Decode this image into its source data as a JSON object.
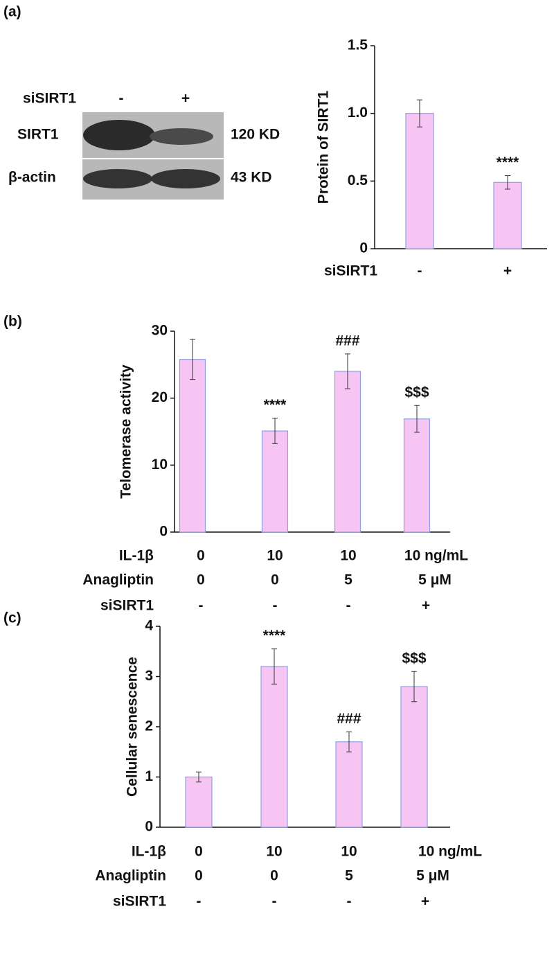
{
  "blot": {
    "column_header": "siSIRT1",
    "columns": [
      "-",
      "+"
    ],
    "rows": [
      {
        "name": "SIRT1",
        "size": "120 KD"
      },
      {
        "name": "β-actin",
        "size": "43 KD"
      }
    ]
  },
  "chart_data": [
    {
      "type": "bar",
      "panel_label": "(a)",
      "ylabel": "Protein of SIRT1",
      "category_rows": [
        {
          "name": "siSIRT1",
          "labels": [
            "-",
            "+"
          ]
        }
      ],
      "values": [
        1.0,
        0.49
      ],
      "errors": [
        0.1,
        0.05
      ],
      "value_annotations": [
        null,
        "****"
      ],
      "ylim": [
        0,
        1.5
      ],
      "yticks": [
        0,
        0.5,
        {
          "value": 1,
          "label": "1.0"
        },
        1.5
      ],
      "color": "#f6c5f3",
      "edge_color": "#8f9fe0"
    },
    {
      "type": "bar",
      "panel_label": "(b)",
      "ylabel": "Telomerase activity",
      "category_rows": [
        {
          "name": "IL-1β",
          "labels": [
            "0",
            "10",
            "10",
            "10 ng/mL"
          ]
        },
        {
          "name": "Anagliptin",
          "labels": [
            "0",
            "0",
            "5",
            "5 μM"
          ]
        },
        {
          "name": "siSIRT1",
          "labels": [
            "-",
            "-",
            "-",
            "+"
          ]
        }
      ],
      "values": [
        25.8,
        15.1,
        24.0,
        16.9
      ],
      "errors": [
        3.0,
        1.9,
        2.6,
        2.0
      ],
      "value_annotations": [
        null,
        "****",
        "###",
        "$$$"
      ],
      "ylim": [
        0,
        30
      ],
      "yticks": [
        0,
        10,
        20,
        30
      ],
      "color": "#f6c5f3",
      "edge_color": "#8f9fe0"
    },
    {
      "type": "bar",
      "panel_label": "(c)",
      "ylabel": "Cellular senescence",
      "category_rows": [
        {
          "name": "IL-1β",
          "labels": [
            "0",
            "10",
            "10",
            "10 ng/mL"
          ]
        },
        {
          "name": "Anagliptin",
          "labels": [
            "0",
            "0",
            "5",
            "5 μM"
          ]
        },
        {
          "name": "siSIRT1",
          "labels": [
            "-",
            "-",
            "-",
            "+"
          ]
        }
      ],
      "values": [
        1.0,
        3.2,
        1.7,
        2.8
      ],
      "errors": [
        0.1,
        0.35,
        0.2,
        0.3
      ],
      "value_annotations": [
        null,
        "****",
        "###",
        "$$$"
      ],
      "ylim": [
        0,
        4
      ],
      "yticks": [
        0,
        1,
        2,
        3,
        4
      ],
      "color": "#f6c5f3",
      "edge_color": "#8f9fe0"
    }
  ]
}
